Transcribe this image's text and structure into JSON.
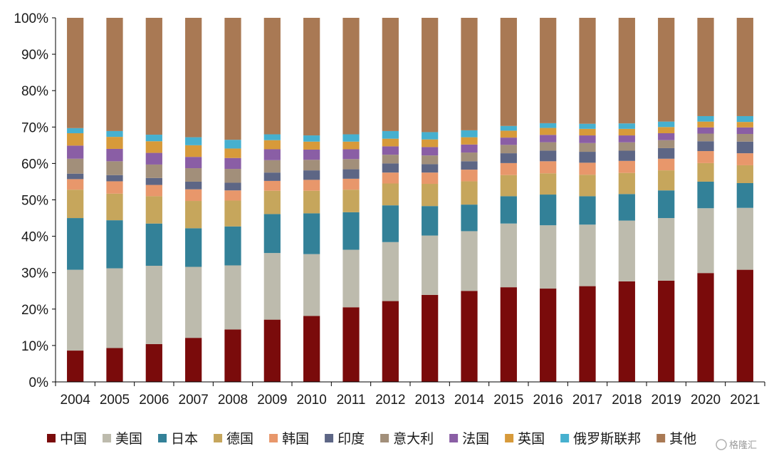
{
  "chart_data": {
    "type": "bar",
    "stacked": true,
    "categories": [
      "2004",
      "2005",
      "2006",
      "2007",
      "2008",
      "2009",
      "2010",
      "2011",
      "2012",
      "2013",
      "2014",
      "2015",
      "2016",
      "2017",
      "2018",
      "2019",
      "2020",
      "2021"
    ],
    "series": [
      {
        "name": "中国",
        "color": "#7a0b0b",
        "values": [
          8.6,
          9.3,
          10.4,
          12.1,
          14.4,
          17.1,
          18.1,
          20.5,
          22.2,
          23.9,
          25.0,
          26.0,
          25.5,
          26.3,
          27.6,
          27.8,
          29.9,
          30.8
        ]
      },
      {
        "name": "美国",
        "color": "#bdbbad",
        "values": [
          22.2,
          21.9,
          21.5,
          19.5,
          17.6,
          18.3,
          17.0,
          15.8,
          16.2,
          16.3,
          16.4,
          17.5,
          17.3,
          16.9,
          16.7,
          17.2,
          17.8,
          17.0
        ]
      },
      {
        "name": "日本",
        "color": "#338198",
        "values": [
          14.2,
          13.2,
          11.6,
          10.6,
          10.7,
          10.7,
          11.2,
          10.3,
          10.1,
          8.1,
          7.3,
          7.5,
          8.4,
          7.8,
          7.3,
          7.6,
          7.3,
          6.8
        ]
      },
      {
        "name": "德国",
        "color": "#c6a65c",
        "values": [
          7.8,
          7.3,
          7.5,
          7.5,
          7.1,
          6.4,
          6.2,
          6.2,
          6.0,
          6.1,
          6.4,
          5.8,
          5.8,
          5.9,
          5.8,
          5.5,
          5.1,
          4.9
        ]
      },
      {
        "name": "韩国",
        "color": "#e8976b",
        "values": [
          2.9,
          3.4,
          3.1,
          3.2,
          2.8,
          2.7,
          3.0,
          3.0,
          3.0,
          3.1,
          3.2,
          3.3,
          3.3,
          3.3,
          3.3,
          3.2,
          3.3,
          3.3
        ]
      },
      {
        "name": "印度",
        "color": "#5d6685",
        "values": [
          1.5,
          1.7,
          1.9,
          2.1,
          2.1,
          2.3,
          2.6,
          2.6,
          2.5,
          2.3,
          2.3,
          2.7,
          2.9,
          3.0,
          2.8,
          2.9,
          2.7,
          3.2
        ]
      },
      {
        "name": "意大利",
        "color": "#a28f7a",
        "values": [
          4.1,
          3.8,
          3.7,
          3.7,
          3.8,
          3.4,
          2.9,
          2.8,
          2.4,
          2.4,
          2.4,
          2.3,
          2.3,
          2.4,
          2.3,
          2.2,
          2.1,
          2.1
        ]
      },
      {
        "name": "法国",
        "color": "#8a5ea5",
        "values": [
          3.6,
          3.4,
          3.2,
          3.1,
          3.0,
          3.0,
          2.8,
          2.7,
          2.3,
          2.3,
          2.2,
          2.0,
          2.0,
          2.1,
          1.9,
          1.9,
          1.7,
          1.8
        ]
      },
      {
        "name": "英国",
        "color": "#d79a3a",
        "values": [
          3.4,
          3.3,
          3.2,
          3.2,
          2.6,
          2.5,
          2.2,
          2.1,
          2.1,
          2.1,
          2.0,
          1.9,
          1.9,
          1.8,
          1.8,
          1.7,
          1.6,
          1.5
        ]
      },
      {
        "name": "俄罗斯联邦",
        "color": "#46b0cf",
        "values": [
          1.4,
          1.6,
          1.8,
          2.2,
          2.4,
          1.6,
          1.7,
          2.0,
          2.1,
          2.0,
          1.9,
          1.3,
          1.3,
          1.4,
          1.5,
          1.5,
          1.5,
          1.6
        ]
      },
      {
        "name": "其他",
        "color": "#a97954",
        "values": [
          30.3,
          31.1,
          32.1,
          32.8,
          33.5,
          32.0,
          32.3,
          32.0,
          31.1,
          31.4,
          30.9,
          29.7,
          28.8,
          29.1,
          29.0,
          28.5,
          27.0,
          27.0
        ]
      }
    ],
    "yticks": [
      "0%",
      "10%",
      "20%",
      "30%",
      "40%",
      "50%",
      "60%",
      "70%",
      "80%",
      "90%",
      "100%"
    ],
    "ylim": [
      0,
      100
    ],
    "title": "",
    "xlabel": "",
    "ylabel": "",
    "grid": false,
    "legend_position": "bottom"
  },
  "watermark": "格隆汇"
}
